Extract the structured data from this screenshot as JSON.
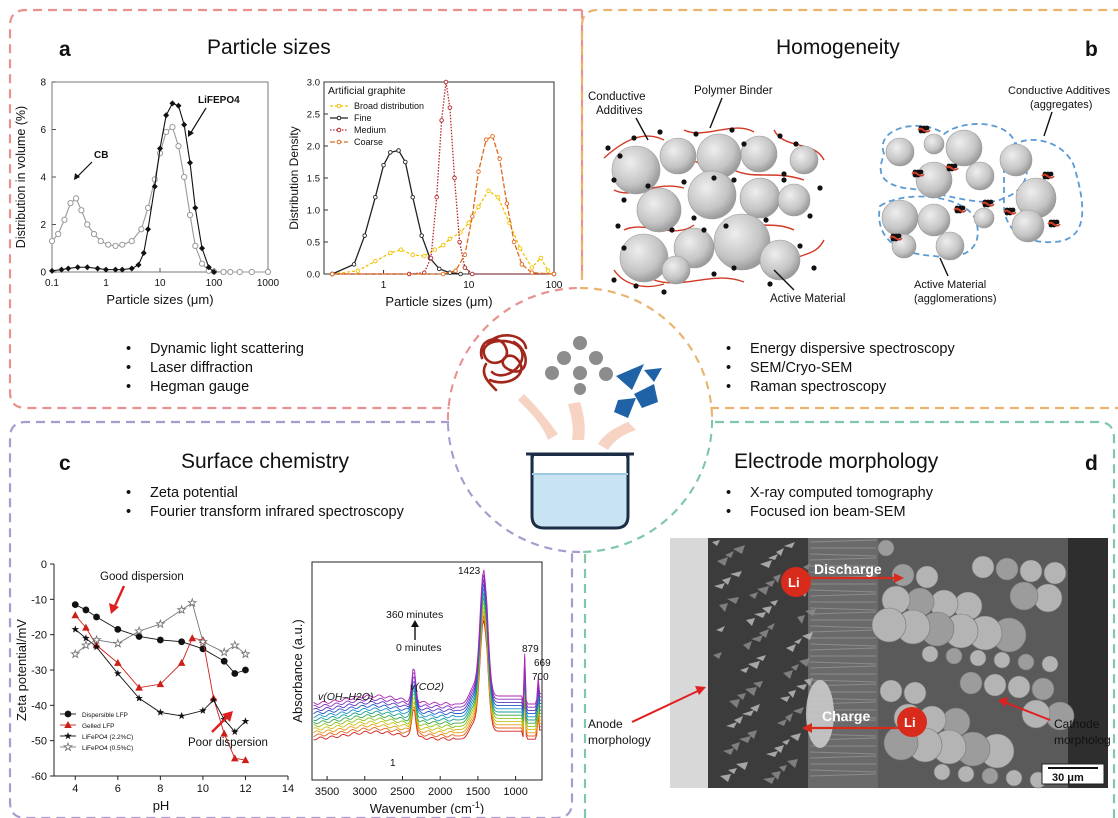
{
  "panels": {
    "a": {
      "letter": "a",
      "title": "Particle sizes",
      "techniques": [
        "Dynamic light scattering",
        "Laser diffraction",
        "Hegman gauge"
      ]
    },
    "b": {
      "letter": "b",
      "title": "Homogeneity",
      "techniques": [
        "Energy dispersive spectroscopy",
        "SEM/Cryo-SEM",
        "Raman spectroscopy"
      ],
      "labels": {
        "conductive_additives": [
          "Conductive",
          "Additives"
        ],
        "polymer_binder": "Polymer Binder",
        "active_material": "Active Material",
        "conductive_aggregates": [
          "Conductive Additives",
          "(aggregates)"
        ],
        "active_agglomerations": [
          "Active Material",
          "(agglomerations)"
        ]
      }
    },
    "c": {
      "letter": "c",
      "title": "Surface chemistry",
      "techniques": [
        "Zeta potential",
        "Fourier transform infrared spectroscopy"
      ]
    },
    "d": {
      "letter": "d",
      "title": "Electrode morphology",
      "techniques": [
        "X-ray computed tomography",
        "Focused ion beam-SEM"
      ],
      "labels": {
        "discharge": "Discharge",
        "charge": "Charge",
        "li": "Li",
        "anode": [
          "Anode",
          "morphology"
        ],
        "cathode": [
          "Cathode",
          "morpholog"
        ],
        "scale": "30 μm"
      }
    }
  },
  "colors": {
    "a": "#e8918f",
    "b": "#e8b46e",
    "c": "#a99bd0",
    "d": "#7fc7a8",
    "particle": "#c4c4c4",
    "binder": "#d23a26",
    "li_ion": "#d92b1c",
    "aggregate_outline": "#5b9bd5"
  },
  "chart_data": [
    {
      "type": "line",
      "id": "a1",
      "xlabel": "Particle sizes (μm)",
      "ylabel": "Distribution in volume (%)",
      "xscale": "log",
      "xlim": [
        0.1,
        1000
      ],
      "ylim": [
        0,
        8
      ],
      "xticks": [
        "0.1",
        "1",
        "10",
        "100",
        "1000"
      ],
      "yticks": [
        "0",
        "2",
        "4",
        "6",
        "8"
      ],
      "annotations": [
        "CB",
        "LiFEPO4"
      ],
      "series": [
        {
          "name": "",
          "marker": "open",
          "x": [
            0.1,
            0.13,
            0.17,
            0.22,
            0.28,
            0.35,
            0.45,
            0.6,
            0.8,
            1.1,
            1.5,
            2,
            3,
            4.5,
            6,
            8,
            10,
            13,
            17,
            22,
            28,
            36,
            45,
            60,
            80,
            100,
            150,
            200,
            300,
            500,
            1000
          ],
          "y": [
            1.3,
            1.6,
            2.2,
            2.9,
            3.1,
            2.6,
            2.0,
            1.6,
            1.3,
            1.15,
            1.1,
            1.15,
            1.3,
            1.8,
            2.7,
            3.9,
            5.0,
            5.9,
            6.1,
            5.3,
            4.0,
            2.4,
            1.1,
            0.35,
            0.05,
            0.02,
            0,
            0,
            0,
            0,
            0
          ]
        },
        {
          "name": "",
          "marker": "filled",
          "x": [
            0.1,
            0.15,
            0.2,
            0.3,
            0.45,
            0.7,
            1,
            1.5,
            2,
            3,
            4,
            5,
            6,
            8,
            10,
            13,
            17,
            22,
            28,
            36,
            45,
            60,
            80,
            100
          ],
          "y": [
            0.05,
            0.1,
            0.15,
            0.2,
            0.2,
            0.15,
            0.1,
            0.1,
            0.1,
            0.15,
            0.3,
            0.8,
            1.8,
            3.6,
            5.2,
            6.6,
            7.1,
            7.0,
            6.2,
            4.6,
            2.7,
            1.0,
            0.2,
            0
          ]
        }
      ]
    },
    {
      "type": "line",
      "id": "a2",
      "title": "Artificial graphite",
      "xlabel": "Particle sizes (μm)",
      "ylabel": "Distribution Density",
      "xscale": "log",
      "xlim": [
        0.2,
        100
      ],
      "ylim": [
        0,
        3.0
      ],
      "xticks": [
        "1",
        "10",
        "100"
      ],
      "yticks": [
        "0.0",
        "0.5",
        "1.0",
        "1.5",
        "2.0",
        "2.5",
        "3.0"
      ],
      "series": [
        {
          "name": "Broad distribution",
          "color": "#f2c200",
          "x": [
            0.25,
            0.5,
            0.8,
            1.2,
            1.6,
            2.2,
            3,
            4,
            5,
            6,
            8,
            10,
            13,
            17,
            22,
            30,
            40,
            55,
            70,
            85
          ],
          "y": [
            0,
            0.05,
            0.2,
            0.33,
            0.38,
            0.3,
            0.28,
            0.38,
            0.45,
            0.55,
            0.65,
            0.8,
            1.05,
            1.3,
            1.2,
            0.8,
            0.4,
            0.1,
            0.25,
            0.05
          ]
        },
        {
          "name": "Fine",
          "color": "#222222",
          "x": [
            0.25,
            0.45,
            0.6,
            0.8,
            1,
            1.2,
            1.5,
            1.8,
            2.2,
            2.8,
            3.5,
            4.5,
            6,
            8
          ],
          "y": [
            0,
            0.15,
            0.6,
            1.2,
            1.7,
            1.9,
            1.93,
            1.75,
            1.2,
            0.6,
            0.25,
            0.08,
            0.02,
            0
          ]
        },
        {
          "name": "Medium",
          "color": "#b5282e",
          "x": [
            0.25,
            2,
            3,
            3.6,
            4.2,
            4.8,
            5.4,
            6,
            6.8,
            7.8,
            9,
            11,
            100
          ],
          "y": [
            0,
            0,
            0.02,
            0.25,
            1.2,
            2.4,
            3.0,
            2.6,
            1.5,
            0.5,
            0.1,
            0,
            0
          ]
        },
        {
          "name": "Coarse",
          "color": "#e06a1c",
          "x": [
            0.25,
            5,
            7,
            9,
            11,
            13,
            16,
            19,
            23,
            28,
            34,
            42,
            55,
            100
          ],
          "y": [
            0,
            0,
            0.05,
            0.3,
            0.9,
            1.6,
            2.1,
            2.15,
            1.8,
            1.1,
            0.5,
            0.15,
            0.02,
            0
          ]
        }
      ]
    },
    {
      "type": "line",
      "id": "c1",
      "xlabel": "pH",
      "ylabel": "Zeta potential/mV",
      "xlim": [
        3,
        14
      ],
      "ylim": [
        -60,
        0
      ],
      "xticks": [
        "4",
        "6",
        "8",
        "10",
        "12",
        "14"
      ],
      "yticks": [
        "0",
        "-10",
        "-20",
        "-30",
        "-40",
        "-50",
        "-60"
      ],
      "annotations": [
        "Good dispersion",
        "Poor dispersion"
      ],
      "series": [
        {
          "name": "Dispersible LFP",
          "marker": "circle",
          "color": "#111111",
          "x": [
            4,
            4.5,
            5,
            6,
            7,
            8,
            9,
            10,
            11,
            11.5,
            12
          ],
          "y": [
            -11.5,
            -13,
            -15,
            -18.5,
            -20.5,
            -21.5,
            -22,
            -24,
            -27.5,
            -31,
            -30
          ]
        },
        {
          "name": "Gelled LFP",
          "marker": "triangle",
          "color": "#cc1f1a",
          "x": [
            4,
            4.5,
            5,
            6,
            7,
            8,
            9,
            9.5,
            10,
            10.5,
            11,
            11.5,
            12
          ],
          "y": [
            -14.5,
            -18,
            -23,
            -28,
            -35,
            -34,
            -28,
            -21,
            -21.5,
            -38,
            -48,
            -55,
            -55.5
          ]
        },
        {
          "name": "LiFePO4 (2.2%C)",
          "marker": "star",
          "color": "#111111",
          "x": [
            4,
            4.5,
            5,
            6,
            7,
            8,
            9,
            10,
            10.5,
            11,
            11.5,
            12
          ],
          "y": [
            -18.5,
            -21,
            -23.5,
            -31,
            -38,
            -42,
            -43,
            -41.5,
            -38.5,
            -44,
            -47.5,
            -44.5
          ]
        },
        {
          "name": "LiFePO4 (0.5%C)",
          "marker": "openstar",
          "color": "#777777",
          "x": [
            4,
            4.5,
            5,
            6,
            7,
            8,
            9,
            9.5,
            10,
            11,
            11.5,
            12
          ],
          "y": [
            -25.5,
            -23,
            -21.5,
            -22.5,
            -19,
            -17,
            -13,
            -11,
            -22,
            -25,
            -23,
            -25.5
          ]
        }
      ]
    },
    {
      "type": "line",
      "id": "c2",
      "xlabel": "Wavenumber (cm-1)",
      "ylabel": "Absorbance (a.u.)",
      "xlim": [
        3700,
        650
      ],
      "xticks": [
        "3500",
        "3000",
        "2500",
        "2000",
        "1500",
        "1000"
      ],
      "annotations": [
        "1423",
        "879",
        "669",
        "700",
        "360 minutes",
        "0 minutes",
        "v(OH–H2O)",
        "v(CO2)",
        "1"
      ],
      "curves": 12
    }
  ]
}
